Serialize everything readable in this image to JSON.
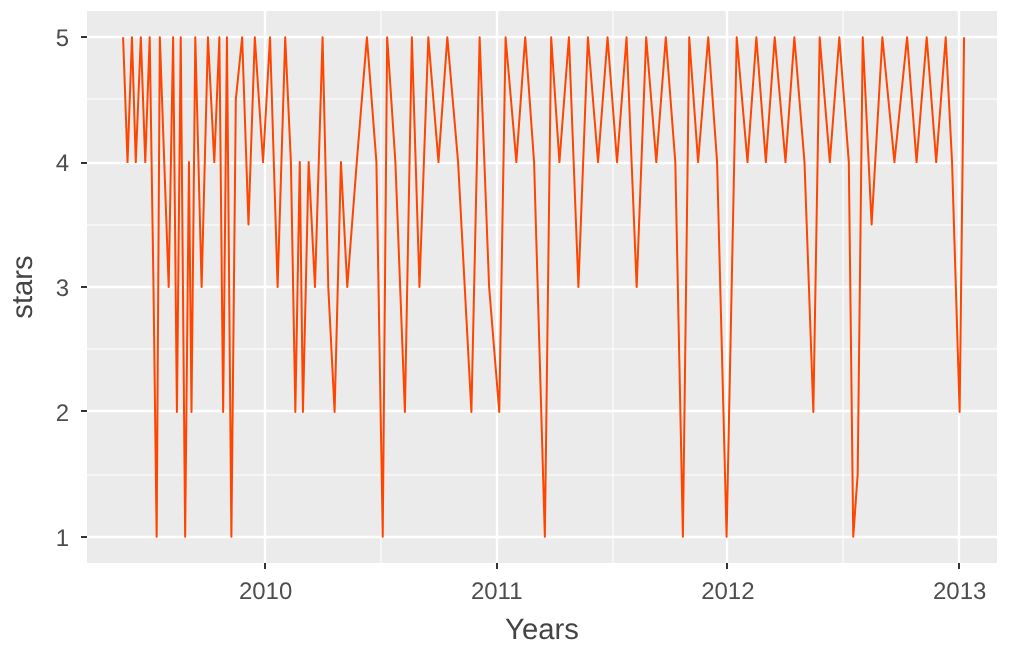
{
  "chart_data": {
    "type": "line",
    "xlabel": "Years",
    "ylabel": "stars",
    "grid": true,
    "xlim": [
      "2009-03-25",
      "2013-03-01"
    ],
    "ylim": [
      0.79,
      5.21
    ],
    "xticks": [
      {
        "value": "2010-01-01",
        "label": "2010"
      },
      {
        "value": "2011-01-01",
        "label": "2011"
      },
      {
        "value": "2012-01-01",
        "label": "2012"
      },
      {
        "value": "2013-01-01",
        "label": "2013"
      }
    ],
    "yticks": [
      1,
      2,
      3,
      4,
      5
    ],
    "x": [
      "2009-05-21",
      "2009-05-28",
      "2009-06-04",
      "2009-06-10",
      "2009-06-18",
      "2009-06-25",
      "2009-07-02",
      "2009-07-08",
      "2009-07-13",
      "2009-07-18",
      "2009-07-25",
      "2009-08-01",
      "2009-08-08",
      "2009-08-14",
      "2009-08-20",
      "2009-08-27",
      "2009-09-02",
      "2009-09-06",
      "2009-09-12",
      "2009-09-22",
      "2009-10-02",
      "2009-10-12",
      "2009-10-20",
      "2009-10-26",
      "2009-11-01",
      "2009-11-08",
      "2009-11-15",
      "2009-11-25",
      "2009-12-05",
      "2009-12-15",
      "2009-12-28",
      "2010-01-08",
      "2010-01-20",
      "2010-02-01",
      "2010-02-10",
      "2010-02-17",
      "2010-02-24",
      "2010-03-01",
      "2010-03-10",
      "2010-03-20",
      "2010-04-01",
      "2010-04-10",
      "2010-04-20",
      "2010-04-30",
      "2010-05-10",
      "2010-05-25",
      "2010-06-10",
      "2010-06-25",
      "2010-07-05",
      "2010-07-12",
      "2010-07-25",
      "2010-08-09",
      "2010-08-20",
      "2010-09-01",
      "2010-09-15",
      "2010-10-01",
      "2010-10-15",
      "2010-11-01",
      "2010-11-22",
      "2010-12-05",
      "2010-12-20",
      "2011-01-05",
      "2011-01-15",
      "2011-02-01",
      "2011-02-15",
      "2011-03-01",
      "2011-03-18",
      "2011-03-28",
      "2011-04-10",
      "2011-04-25",
      "2011-05-10",
      "2011-05-25",
      "2011-06-10",
      "2011-06-25",
      "2011-07-10",
      "2011-07-25",
      "2011-08-10",
      "2011-08-25",
      "2011-09-10",
      "2011-09-25",
      "2011-10-10",
      "2011-10-22",
      "2011-11-01",
      "2011-11-15",
      "2011-12-01",
      "2011-12-15",
      "2011-12-30",
      "2012-01-02",
      "2012-01-15",
      "2012-02-01",
      "2012-02-15",
      "2012-03-01",
      "2012-03-15",
      "2012-04-01",
      "2012-04-15",
      "2012-05-01",
      "2012-05-15",
      "2012-05-25",
      "2012-06-10",
      "2012-06-25",
      "2012-07-10",
      "2012-07-17",
      "2012-07-24",
      "2012-08-01",
      "2012-08-15",
      "2012-09-01",
      "2012-09-20",
      "2012-10-10",
      "2012-10-25",
      "2012-11-10",
      "2012-11-25",
      "2012-12-10",
      "2012-12-20",
      "2013-01-01",
      "2013-01-08"
    ],
    "series": [
      {
        "color": "#ff4500",
        "values": [
          5,
          4,
          5,
          4,
          5,
          4,
          5,
          3,
          1,
          5,
          4,
          3,
          5,
          2,
          5,
          1,
          4,
          2,
          5,
          3,
          5,
          4,
          5,
          2,
          5,
          1,
          4.5,
          5,
          3.5,
          5,
          4,
          5,
          3,
          5,
          4,
          2,
          4,
          2,
          4,
          3,
          5,
          3,
          2,
          4,
          3,
          4,
          5,
          4,
          1,
          5,
          4,
          2,
          5,
          3,
          5,
          4,
          5,
          4,
          2,
          5,
          3,
          2,
          5,
          4,
          5,
          4,
          1,
          5,
          4,
          5,
          3,
          5,
          4,
          5,
          4,
          5,
          3,
          5,
          4,
          5,
          4,
          1,
          5,
          4,
          5,
          4,
          1,
          1.75,
          5,
          4,
          5,
          4,
          5,
          4,
          5,
          4,
          2,
          5,
          4,
          5,
          4,
          1,
          1.5,
          5,
          3.5,
          5,
          4,
          5,
          4,
          5,
          4,
          5,
          4,
          2,
          5
        ]
      }
    ]
  }
}
